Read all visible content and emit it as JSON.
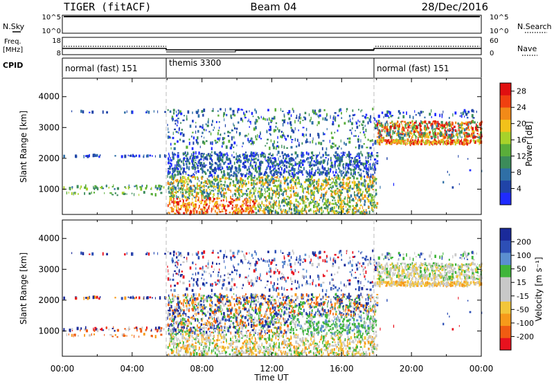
{
  "header": {
    "station": "TIGER (fitACF)",
    "beam": "Beam 04",
    "date": "28/Dec/2016"
  },
  "strip_labels": {
    "nsky": "N.Sky",
    "nsky_top": "10^5",
    "nsky_bottom": "10^0",
    "nsearch": "N.Search",
    "nsearch_top": "10^5",
    "nsearch_bottom": "10^0",
    "freq_line1": "Freq.",
    "freq_line2": "[MHz]",
    "freq_top": "18",
    "freq_bottom": "8",
    "nave": "Nave",
    "nave_top": "60",
    "nave_bottom": "0",
    "cpid": "CPID"
  },
  "cpid_segments": [
    {
      "label": "normal (fast) 151",
      "start_hour": 0
    },
    {
      "label": "themis 3300",
      "start_hour": 6
    },
    {
      "label": "normal (fast) 151",
      "start_hour": 18
    }
  ],
  "colors": {
    "power_scale": [
      "#1f2bff",
      "#2044a8",
      "#2f6fa6",
      "#3c8c5a",
      "#5aae3a",
      "#a8d22a",
      "#f2c21a",
      "#f28a18",
      "#f04010",
      "#e01010"
    ],
    "velocity_scale": [
      "#e8121e",
      "#f05c12",
      "#f79a1a",
      "#f2c63a",
      "#c8c8c8",
      "#c8c8c8",
      "#3fb53a",
      "#5b8fd0",
      "#2d4fb6",
      "#1a2a9a"
    ]
  },
  "chart_data": [
    {
      "type": "heatmap",
      "panel": "power",
      "xlabel": "Time UT",
      "ylabel": "Slant Range [km]",
      "x_tick_labels": [
        "00:00",
        "04:00",
        "08:00",
        "12:00",
        "16:00",
        "20:00",
        "00:00"
      ],
      "x_range_hours": [
        0,
        24
      ],
      "y_ticks": [
        1000,
        2000,
        3000,
        4000
      ],
      "y_range": [
        180,
        4600
      ],
      "colorbar_label": "Power [dB]",
      "colorbar_ticks": [
        "4",
        "8",
        "12",
        "16",
        "20",
        "24",
        "28"
      ],
      "colorbar_range": [
        0,
        30
      ]
    },
    {
      "type": "heatmap",
      "panel": "velocity",
      "xlabel": "Time UT",
      "ylabel": "Slant Range [km]",
      "x_tick_labels": [
        "00:00",
        "04:00",
        "08:00",
        "12:00",
        "16:00",
        "20:00",
        "00:00"
      ],
      "x_range_hours": [
        0,
        24
      ],
      "y_ticks": [
        1000,
        2000,
        3000,
        4000
      ],
      "y_range": [
        180,
        4600
      ],
      "colorbar_label": "Velocity [m s⁻¹]",
      "colorbar_ticks": [
        "200",
        "100",
        "50",
        "15",
        "-15",
        "-50",
        "-100",
        "-200"
      ]
    }
  ]
}
